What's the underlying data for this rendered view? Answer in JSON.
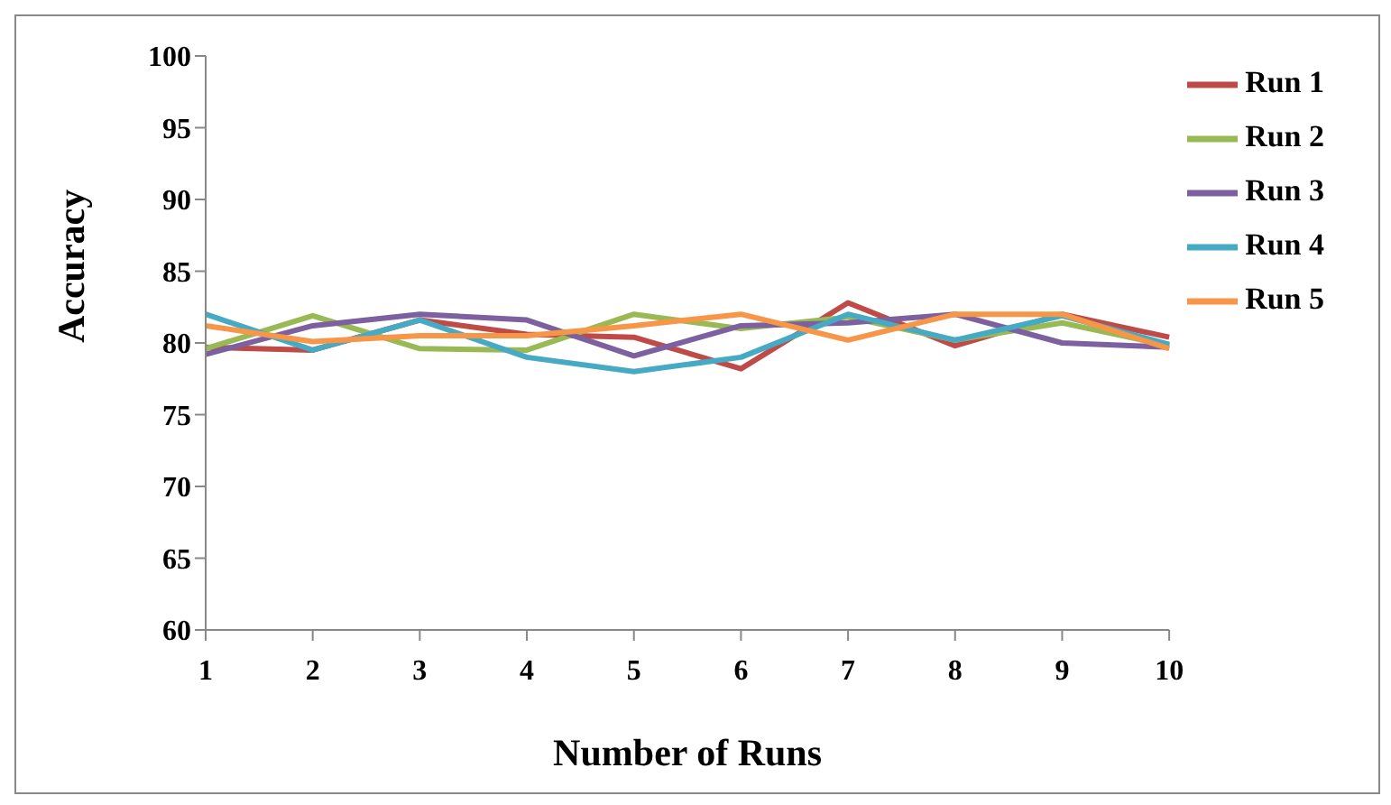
{
  "chart_data": {
    "type": "line",
    "xlabel": "Number of Runs",
    "ylabel": "Accuracy",
    "categories": [
      "1",
      "2",
      "3",
      "4",
      "5",
      "6",
      "7",
      "8",
      "9",
      "10"
    ],
    "ylim": [
      60,
      100
    ],
    "yticks": [
      60,
      65,
      70,
      75,
      80,
      85,
      90,
      95,
      100
    ],
    "grid": false,
    "legend": "right",
    "marker": "none",
    "series": [
      {
        "name": "Run 1",
        "color": "#be4b48",
        "values": [
          79.7,
          79.5,
          81.6,
          80.6,
          80.4,
          78.2,
          82.8,
          79.8,
          82,
          80.4
        ]
      },
      {
        "name": "Run 2",
        "color": "#98b954",
        "values": [
          79.6,
          81.9,
          79.6,
          79.5,
          82,
          81,
          81.8,
          80.2,
          81.4,
          79.8
        ]
      },
      {
        "name": "Run 3",
        "color": "#7d60a0",
        "values": [
          79.2,
          81.2,
          82,
          81.6,
          79.1,
          81.2,
          81.4,
          82,
          80,
          79.7
        ]
      },
      {
        "name": "Run 4",
        "color": "#46aac5",
        "values": [
          82,
          79.5,
          81.6,
          79,
          78,
          79,
          82,
          80.2,
          81.9,
          79.9
        ]
      },
      {
        "name": "Run 5",
        "color": "#f79646",
        "values": [
          81.2,
          80.1,
          80.5,
          80.5,
          81.2,
          82,
          80.2,
          82,
          82,
          79.6
        ]
      }
    ]
  }
}
